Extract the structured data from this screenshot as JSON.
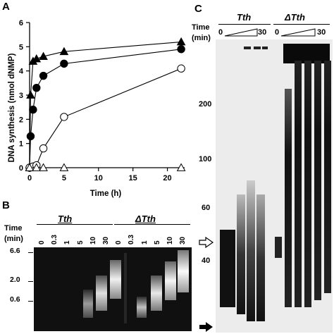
{
  "panelA": {
    "letter": "A",
    "ylabel": "DNA synthesis (nmol dNMP)",
    "xlabel": "Time (h)"
  },
  "panelB": {
    "letter": "B",
    "time_label_line1": "Time",
    "time_label_line2": "(min)",
    "group1": "Tth",
    "group2": "ΔTth",
    "lane_labels": [
      "0",
      "0.3",
      "1",
      "5",
      "10",
      "30",
      "0",
      "0.3",
      "1",
      "5",
      "10",
      "30"
    ],
    "size_markers": [
      "6.6",
      "2.0",
      "0.6"
    ]
  },
  "panelC": {
    "letter": "C",
    "time_label_line1": "Time",
    "time_label_line2": "(min)",
    "group1": "Tth",
    "group2": "ΔTth",
    "ramp_start": "0",
    "ramp_end": "30",
    "size_markers": [
      "200",
      "100",
      "60",
      "40"
    ]
  },
  "chart_data": {
    "type": "line",
    "xlabel": "Time (h)",
    "ylabel": "DNA synthesis (nmol dNMP)",
    "xlim": [
      0,
      22.5
    ],
    "ylim": [
      0,
      6
    ],
    "xticks": [
      0,
      5,
      10,
      15,
      20
    ],
    "yticks": [
      0,
      1,
      2,
      3,
      4,
      5,
      6
    ],
    "series": [
      {
        "marker": "filled-triangle",
        "x": [
          0,
          0.15,
          0.5,
          1,
          2,
          5,
          22
        ],
        "y": [
          0,
          3.0,
          4.4,
          4.5,
          4.6,
          4.8,
          5.2
        ]
      },
      {
        "marker": "filled-circle",
        "x": [
          0,
          0.15,
          0.5,
          1,
          2,
          5,
          22
        ],
        "y": [
          0,
          1.3,
          2.4,
          3.3,
          3.8,
          4.3,
          4.9
        ]
      },
      {
        "marker": "open-circle",
        "x": [
          0,
          0.5,
          1,
          2,
          5,
          22
        ],
        "y": [
          0,
          0.05,
          0.1,
          0.8,
          2.1,
          4.1
        ]
      },
      {
        "marker": "open-triangle",
        "x": [
          0,
          1,
          2,
          5,
          22
        ],
        "y": [
          0,
          0,
          0,
          0,
          0
        ]
      }
    ]
  }
}
